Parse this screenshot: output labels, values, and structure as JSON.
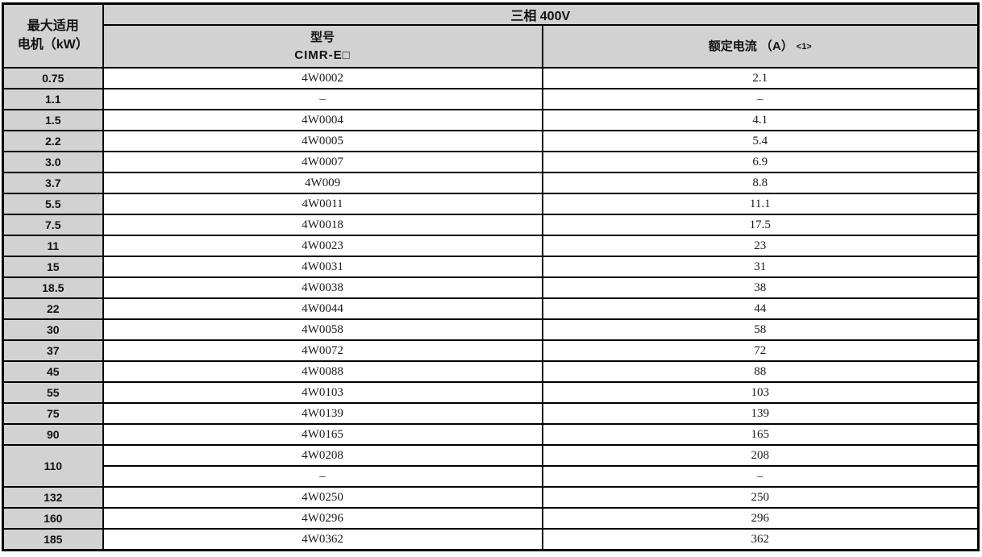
{
  "table": {
    "col_motor": {
      "line1": "最大适用",
      "line2": "电机（kW）"
    },
    "group_header": "三相 400V",
    "col_model": {
      "line1": "型号",
      "line2": "CIMR-E□"
    },
    "col_current": {
      "label": "额定电流 （A）",
      "note": "<1>"
    }
  },
  "rows": [
    {
      "kw": "0.75",
      "entries": [
        {
          "model": "4W0002",
          "current": "2.1"
        }
      ]
    },
    {
      "kw": "1.1",
      "entries": [
        {
          "model": "–",
          "current": "–"
        }
      ]
    },
    {
      "kw": "1.5",
      "entries": [
        {
          "model": "4W0004",
          "current": "4.1"
        }
      ]
    },
    {
      "kw": "2.2",
      "entries": [
        {
          "model": "4W0005",
          "current": "5.4"
        }
      ]
    },
    {
      "kw": "3.0",
      "entries": [
        {
          "model": "4W0007",
          "current": "6.9"
        }
      ]
    },
    {
      "kw": "3.7",
      "entries": [
        {
          "model": "4W009",
          "current": "8.8"
        }
      ]
    },
    {
      "kw": "5.5",
      "entries": [
        {
          "model": "4W0011",
          "current": "11.1"
        }
      ]
    },
    {
      "kw": "7.5",
      "entries": [
        {
          "model": "4W0018",
          "current": "17.5"
        }
      ]
    },
    {
      "kw": "11",
      "entries": [
        {
          "model": "4W0023",
          "current": "23"
        }
      ]
    },
    {
      "kw": "15",
      "entries": [
        {
          "model": "4W0031",
          "current": "31"
        }
      ]
    },
    {
      "kw": "18.5",
      "entries": [
        {
          "model": "4W0038",
          "current": "38"
        }
      ]
    },
    {
      "kw": "22",
      "entries": [
        {
          "model": "4W0044",
          "current": "44"
        }
      ]
    },
    {
      "kw": "30",
      "entries": [
        {
          "model": "4W0058",
          "current": "58"
        }
      ]
    },
    {
      "kw": "37",
      "entries": [
        {
          "model": "4W0072",
          "current": "72"
        }
      ]
    },
    {
      "kw": "45",
      "entries": [
        {
          "model": "4W0088",
          "current": "88"
        }
      ]
    },
    {
      "kw": "55",
      "entries": [
        {
          "model": "4W0103",
          "current": "103"
        }
      ]
    },
    {
      "kw": "75",
      "entries": [
        {
          "model": "4W0139",
          "current": "139"
        }
      ]
    },
    {
      "kw": "90",
      "entries": [
        {
          "model": "4W0165",
          "current": "165"
        }
      ]
    },
    {
      "kw": "110",
      "entries": [
        {
          "model": "4W0208",
          "current": "208"
        },
        {
          "model": "–",
          "current": "–"
        }
      ]
    },
    {
      "kw": "132",
      "entries": [
        {
          "model": "4W0250",
          "current": "250"
        }
      ]
    },
    {
      "kw": "160",
      "entries": [
        {
          "model": "4W0296",
          "current": "296"
        }
      ]
    },
    {
      "kw": "185",
      "entries": [
        {
          "model": "4W0362",
          "current": "362"
        }
      ]
    }
  ]
}
